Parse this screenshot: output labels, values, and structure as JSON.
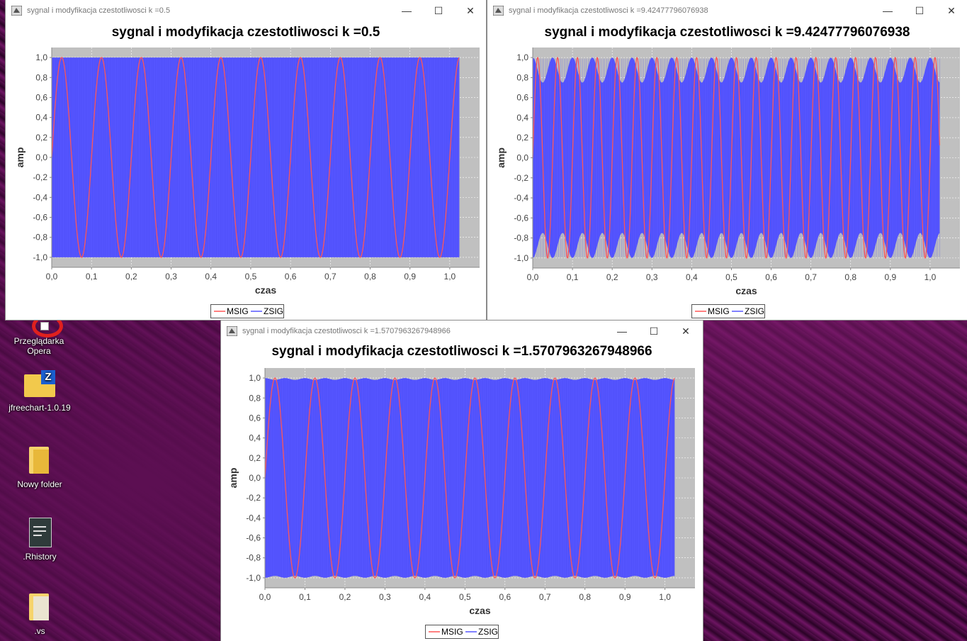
{
  "desktop": {
    "icons": [
      {
        "label": "Przeglądarka Opera"
      },
      {
        "label": "jfreechart-1.0.19"
      },
      {
        "label": "Nowy folder"
      },
      {
        "label": ".Rhistory"
      },
      {
        "label": ".vs"
      }
    ]
  },
  "windows": [
    {
      "title": "sygnal i modyfikacja czestotliwosci k =0.5",
      "chart_title": "sygnal i modyfikacja czestotliwosci k =0.5",
      "k": 0.5
    },
    {
      "title": "sygnal i modyfikacja czestotliwosci k =9.42477796076938",
      "chart_title": "sygnal i modyfikacja czestotliwosci k =9.42477796076938",
      "k": 9.42477796076938
    },
    {
      "title": "sygnal i modyfikacja czestotliwosci k =1.5707963267948966",
      "chart_title": "sygnal i modyfikacja czestotliwosci k =1.5707963267948966",
      "k": 1.5707963267948966
    }
  ],
  "window_controls": {
    "minimize": "—",
    "maximize": "☐",
    "close": "✕"
  },
  "chart_data": [
    {
      "type": "line",
      "title": "sygnal i modyfikacja czestotliwosci k =0.5",
      "xlabel": "czas",
      "ylabel": "amp",
      "xlim": [
        0.0,
        1.024
      ],
      "ylim": [
        -1.0,
        1.0
      ],
      "x_ticks": [
        "0,0",
        "0,1",
        "0,2",
        "0,3",
        "0,4",
        "0,5",
        "0,6",
        "0,7",
        "0,8",
        "0,9",
        "1,0"
      ],
      "y_ticks": [
        "1,0",
        "0,8",
        "0,6",
        "0,4",
        "0,2",
        "0,0",
        "-0,2",
        "-0,4",
        "-0,6",
        "-0,8",
        "-1,0"
      ],
      "legend": "bottom",
      "grid": true,
      "series": [
        {
          "name": "MSIG",
          "color": "#ff5555",
          "function": "sin",
          "frequency_hz": 10,
          "amplitude": 1.0
        },
        {
          "name": "ZSIG",
          "color": "#5555ff",
          "envelope_min": 1.0,
          "envelope_max": 1.0,
          "envelope_frequency_hz": 10
        }
      ]
    },
    {
      "type": "line",
      "title": "sygnal i modyfikacja czestotliwosci k =9.42477796076938",
      "xlabel": "czas",
      "ylabel": "amp",
      "xlim": [
        0.0,
        1.024
      ],
      "ylim": [
        -1.0,
        1.0
      ],
      "x_ticks": [
        "0,0",
        "0,1",
        "0,2",
        "0,3",
        "0,4",
        "0,5",
        "0,6",
        "0,7",
        "0,8",
        "0,9",
        "1,0"
      ],
      "y_ticks": [
        "1,0",
        "0,8",
        "0,6",
        "0,4",
        "0,2",
        "0,0",
        "-0,2",
        "-0,4",
        "-0,6",
        "-0,8",
        "-1,0"
      ],
      "legend": "bottom",
      "grid": true,
      "series": [
        {
          "name": "MSIG",
          "color": "#ff5555",
          "function": "sin",
          "frequency_hz": 20,
          "amplitude": 1.0
        },
        {
          "name": "ZSIG",
          "color": "#5555ff",
          "envelope_min": 0.75,
          "envelope_max": 1.0,
          "envelope_frequency_hz": 20
        }
      ]
    },
    {
      "type": "line",
      "title": "sygnal i modyfikacja czestotliwosci k =1.5707963267948966",
      "xlabel": "czas",
      "ylabel": "amp",
      "xlim": [
        0.0,
        1.024
      ],
      "ylim": [
        -1.0,
        1.0
      ],
      "x_ticks": [
        "0,0",
        "0,1",
        "0,2",
        "0,3",
        "0,4",
        "0,5",
        "0,6",
        "0,7",
        "0,8",
        "0,9",
        "1,0"
      ],
      "y_ticks": [
        "1,0",
        "0,8",
        "0,6",
        "0,4",
        "0,2",
        "0,0",
        "-0,2",
        "-0,4",
        "-0,6",
        "-0,8",
        "-1,0"
      ],
      "legend": "bottom",
      "grid": true,
      "series": [
        {
          "name": "MSIG",
          "color": "#ff5555",
          "function": "sin",
          "frequency_hz": 10,
          "amplitude": 1.0
        },
        {
          "name": "ZSIG",
          "color": "#5555ff",
          "envelope_min": 0.98,
          "envelope_max": 1.0,
          "envelope_frequency_hz": 20
        }
      ]
    }
  ]
}
